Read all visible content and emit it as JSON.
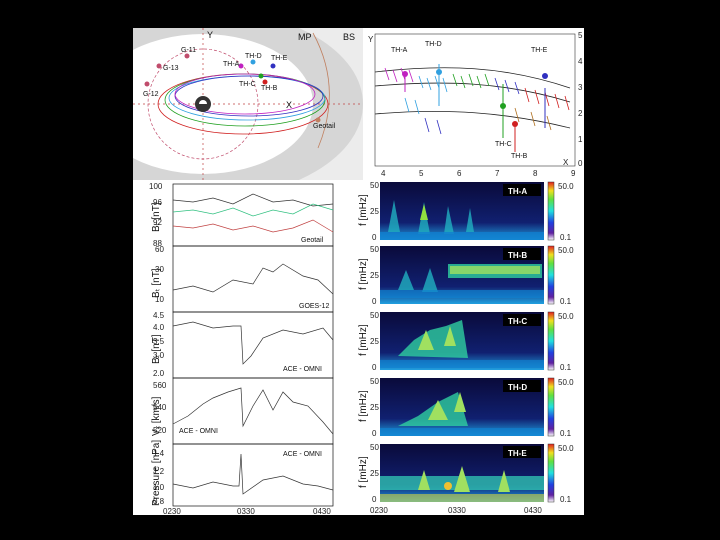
{
  "orbit_map": {
    "axis_y": "Y",
    "axis_x": "X",
    "mp_label": "MP",
    "bs_label": "BS",
    "goes": [
      {
        "name": "G-11",
        "color": "#c04c6c"
      },
      {
        "name": "G-13",
        "color": "#c04c6c"
      },
      {
        "name": "G-12",
        "color": "#c04c6c"
      }
    ],
    "themis": [
      {
        "name": "TH-A",
        "color": "#c020c0"
      },
      {
        "name": "TH-D",
        "color": "#30a0e0"
      },
      {
        "name": "TH-E",
        "color": "#3030c0"
      },
      {
        "name": "TH-C",
        "color": "#20a020"
      },
      {
        "name": "TH-B",
        "color": "#d02020"
      }
    ],
    "geotail_label": "Geotail"
  },
  "vector_map": {
    "y_axis_label": "Y",
    "x_axis_label": "X",
    "x_ticks": [
      "4",
      "5",
      "6",
      "7",
      "8",
      "9"
    ],
    "y_ticks": [
      "5",
      "4",
      "3",
      "2",
      "1",
      "0"
    ],
    "labels": [
      {
        "name": "TH-A",
        "color": "#c020c0"
      },
      {
        "name": "TH-D",
        "color": "#30a0e0"
      },
      {
        "name": "TH-E",
        "color": "#3030c0"
      },
      {
        "name": "TH-C",
        "color": "#20a020"
      },
      {
        "name": "TH-B",
        "color": "#d02020"
      }
    ]
  },
  "time_series": {
    "x_ticks": [
      "0230",
      "0330",
      "0430"
    ],
    "panels": [
      {
        "ylabel": "Bₜ [nT]",
        "ticks": [
          "100",
          "96",
          "92",
          "88"
        ],
        "tag": "Geotail"
      },
      {
        "ylabel": "Bₜ [nT]",
        "ticks": [
          "60",
          "30",
          "10"
        ],
        "tag": "GOES-12"
      },
      {
        "ylabel": "Bₜ [nT]",
        "ticks": [
          "4.5",
          "4.0",
          "3.5",
          "3.0",
          "2.0"
        ],
        "tag": "ACE - OMNI"
      },
      {
        "ylabel": "Vₓ [km/s]",
        "ticks": [
          "560",
          "540",
          "520"
        ],
        "tag": "ACE - OMNI"
      },
      {
        "ylabel": "Pressure [nPa]",
        "ticks": [
          "1.4",
          "1.2",
          "1.0",
          "0.8"
        ],
        "tag": "ACE - OMNI"
      }
    ]
  },
  "spectrograms": {
    "ylabel": "f [mHz]",
    "y_ticks": [
      "50",
      "25",
      "0"
    ],
    "x_ticks": [
      "0230",
      "0330",
      "0430"
    ],
    "colorbar_ticks": [
      "50.0",
      "0.1"
    ],
    "panels": [
      {
        "label": "TH-A"
      },
      {
        "label": "TH-B"
      },
      {
        "label": "TH-C"
      },
      {
        "label": "TH-D"
      },
      {
        "label": "TH-E"
      }
    ]
  },
  "colors": {
    "orbit_bg_outer": "#e0e0e0",
    "orbit_bg_inner": "#c8c8c8",
    "geotail": "#c08060",
    "spectro_low": "#0a0a40",
    "spectro_high": "#f0f040"
  }
}
